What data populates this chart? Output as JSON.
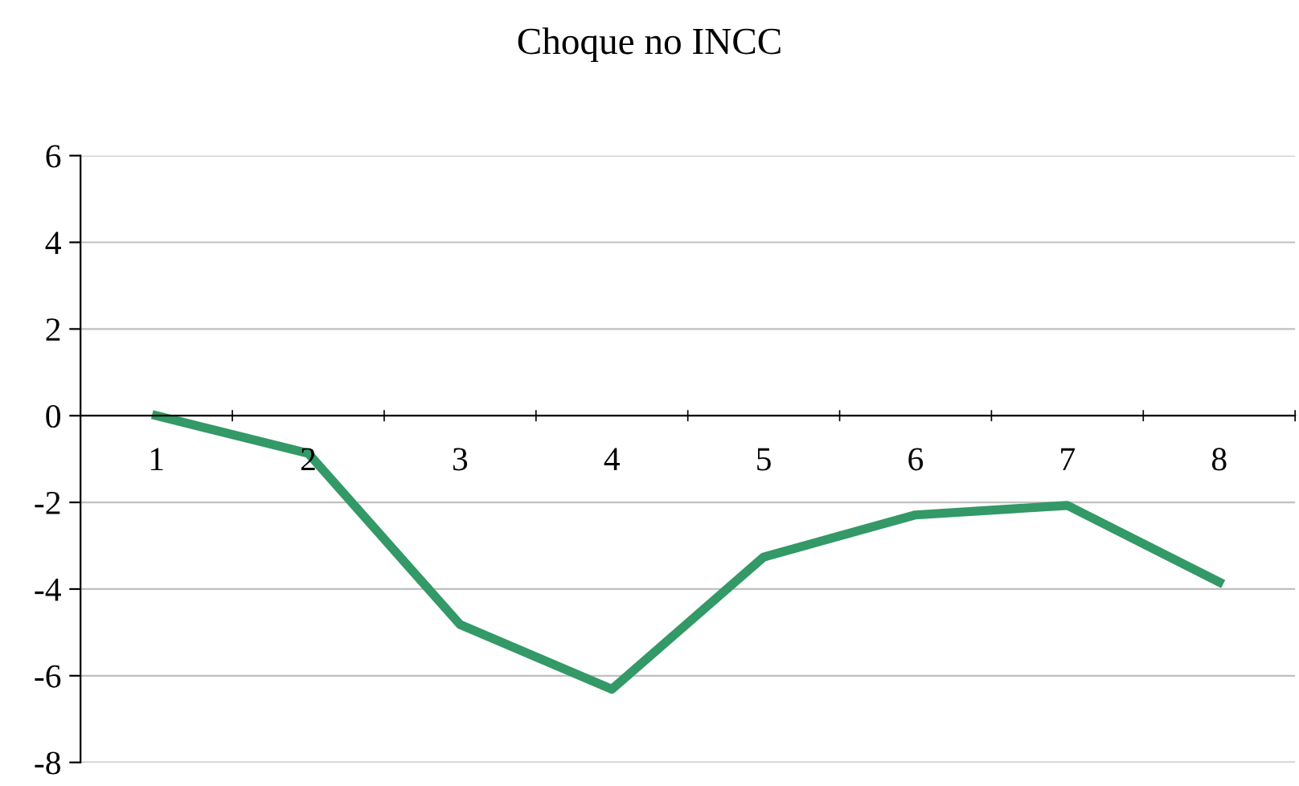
{
  "chart_data": {
    "type": "line",
    "title": "Choque no INCC",
    "categories": [
      "1",
      "2",
      "3",
      "4",
      "5",
      "6",
      "7",
      "8"
    ],
    "series": [
      {
        "color": "#339966",
        "values": [
          0,
          -0.87,
          -4.82,
          -6.31,
          -3.26,
          -2.29,
          -2.07,
          -3.84
        ]
      }
    ],
    "ylim": [
      -8,
      6
    ],
    "yticks": [
      -8,
      -6,
      -4,
      -2,
      0,
      2,
      4,
      6
    ],
    "grid": "y",
    "marker": "none",
    "line_style": "solid",
    "legend": false
  }
}
